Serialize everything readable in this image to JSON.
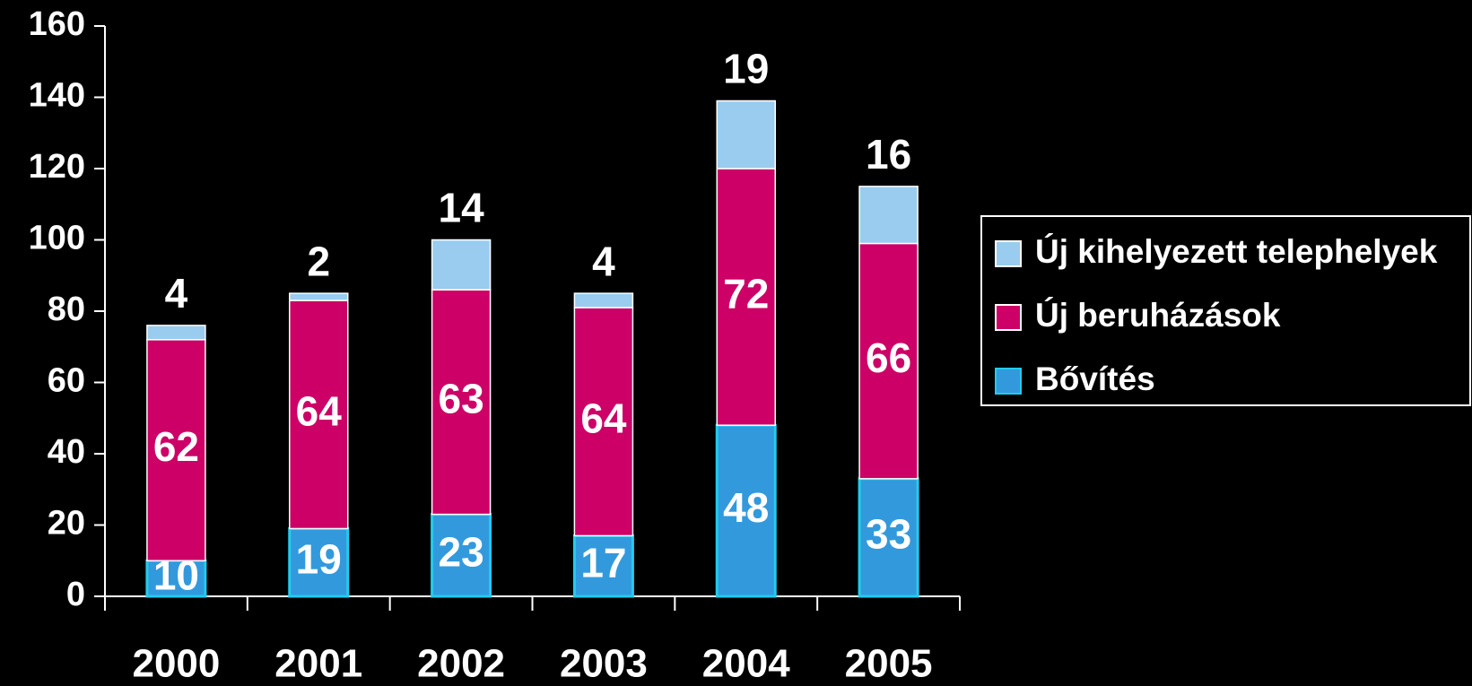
{
  "chart_data": {
    "type": "stacked_bar",
    "categories": [
      "2000",
      "2001",
      "2002",
      "2003",
      "2004",
      "2005"
    ],
    "series": [
      {
        "name": "Bővítés",
        "color": "#3399dd",
        "values": [
          10,
          19,
          23,
          17,
          48,
          33
        ]
      },
      {
        "name": "Új beruházások",
        "color": "#cc0066",
        "values": [
          62,
          64,
          63,
          64,
          72,
          66
        ]
      },
      {
        "name": "Új kihelyezett telephelyek",
        "color": "#99ccee",
        "values": [
          4,
          2,
          14,
          4,
          19,
          16
        ]
      }
    ],
    "ylim": [
      0,
      160
    ],
    "yticks": [
      0,
      20,
      40,
      60,
      80,
      100,
      120,
      140,
      160
    ],
    "grid": false,
    "legend": "right"
  }
}
